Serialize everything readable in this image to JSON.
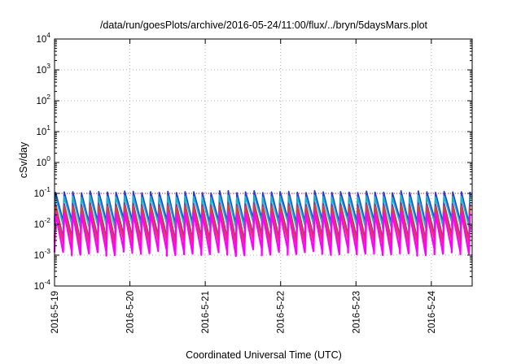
{
  "chart_data": {
    "type": "line",
    "title": "/data/run/goesPlots/archive/2016-05-24/11:00/flux/../bryn/5daysMars.plot",
    "xlabel": "Coordinated Universal Time (UTC)",
    "ylabel": "cSv/day",
    "yscale": "log",
    "ylim": [
      0.0001,
      10000
    ],
    "yticks": [
      {
        "base": "10",
        "exp": "4"
      },
      {
        "base": "10",
        "exp": "3"
      },
      {
        "base": "10",
        "exp": "2"
      },
      {
        "base": "10",
        "exp": "1"
      },
      {
        "base": "10",
        "exp": "0"
      },
      {
        "base": "10",
        "exp": "-1"
      },
      {
        "base": "10",
        "exp": "-2"
      },
      {
        "base": "10",
        "exp": "-3"
      },
      {
        "base": "10",
        "exp": "-4"
      }
    ],
    "xlim": [
      "2016-05-19",
      "2016-05-24 13:00"
    ],
    "xticks": [
      "2016-5-19",
      "2016-5-20",
      "2016-5-21",
      "2016-5-22",
      "2016-5-23",
      "2016-5-24"
    ],
    "grid": true,
    "sawtooth_period_hours": 2.75,
    "reference_level": 0.1,
    "series": [
      {
        "color": "#1f3fd6",
        "peak": 0.12,
        "trough": 0.012
      },
      {
        "color": "#18b4c8",
        "peak": 0.085,
        "trough": 0.009
      },
      {
        "color": "#7a3a9a",
        "peak": 0.05,
        "trough": 0.0035
      },
      {
        "color": "#e23d3d",
        "peak": 0.04,
        "trough": 0.0025
      },
      {
        "color": "#ff00ff",
        "peak": 0.025,
        "trough": 0.0012
      }
    ],
    "reference_color": "#ff0000"
  }
}
